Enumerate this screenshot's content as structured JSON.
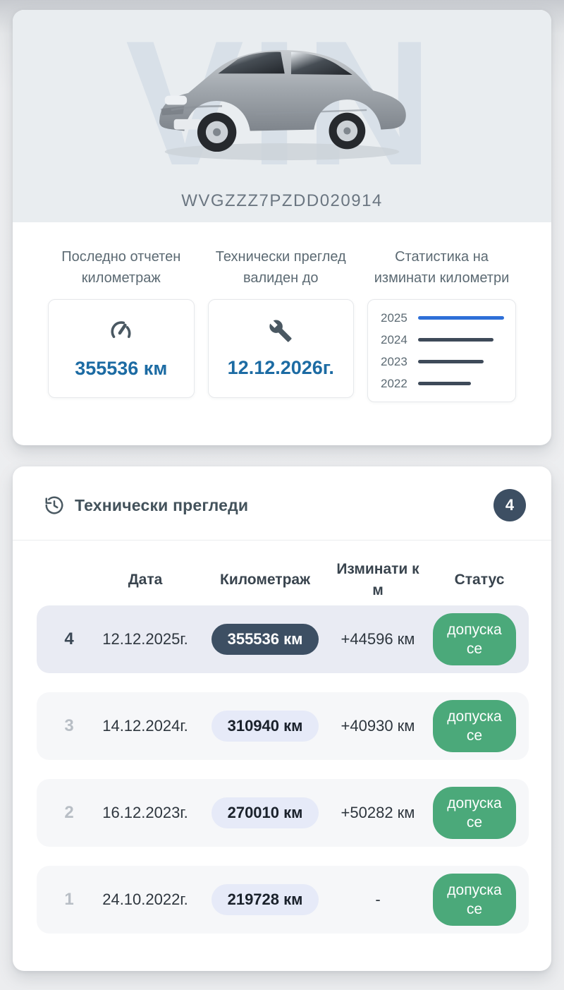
{
  "colors": {
    "accent_blue": "#1c6ba3",
    "chart_blue": "#2e6fd8",
    "chart_dark": "#3e4a59",
    "dark_slate": "#3d4f63",
    "status_green": "#4ba97a",
    "pill_light": "#e6eaf8"
  },
  "vin_card": {
    "watermark": "VIN",
    "vin": "WVGZZZ7PZDD020914",
    "stats": [
      {
        "label": "Последно отчетен километраж",
        "value": "355536 км",
        "icon": "speedometer-icon"
      },
      {
        "label": "Технически преглед валиден до",
        "value": "12.12.2026г.",
        "icon": "wrench-icon"
      }
    ],
    "chart_label": "Статистика на изминати километри"
  },
  "chart_data": {
    "type": "bar",
    "orientation": "horizontal",
    "title": "Статистика на изминати километри",
    "categories": [
      "2025",
      "2024",
      "2023",
      "2022"
    ],
    "values": [
      355536,
      310940,
      270010,
      219728
    ],
    "bar_colors": [
      "#2e6fd8",
      "#3e4a59",
      "#3e4a59",
      "#3e4a59"
    ],
    "legend": "none",
    "grid": false
  },
  "inspections": {
    "title": "Технически прегледи",
    "count": "4",
    "columns": [
      "Дата",
      "Километраж",
      "Изминати км",
      "Статус"
    ],
    "rows": [
      {
        "num": "4",
        "date": "12.12.2025г.",
        "km": "355536 км",
        "diff": "+44596 км",
        "status": "допуска се",
        "highlight": true
      },
      {
        "num": "3",
        "date": "14.12.2024г.",
        "km": "310940 км",
        "diff": "+40930 км",
        "status": "допуска се",
        "highlight": false
      },
      {
        "num": "2",
        "date": "16.12.2023г.",
        "km": "270010 км",
        "diff": "+50282 км",
        "status": "допуска се",
        "highlight": false
      },
      {
        "num": "1",
        "date": "24.10.2022г.",
        "km": "219728 км",
        "diff": "-",
        "status": "допуска се",
        "highlight": false
      }
    ]
  }
}
